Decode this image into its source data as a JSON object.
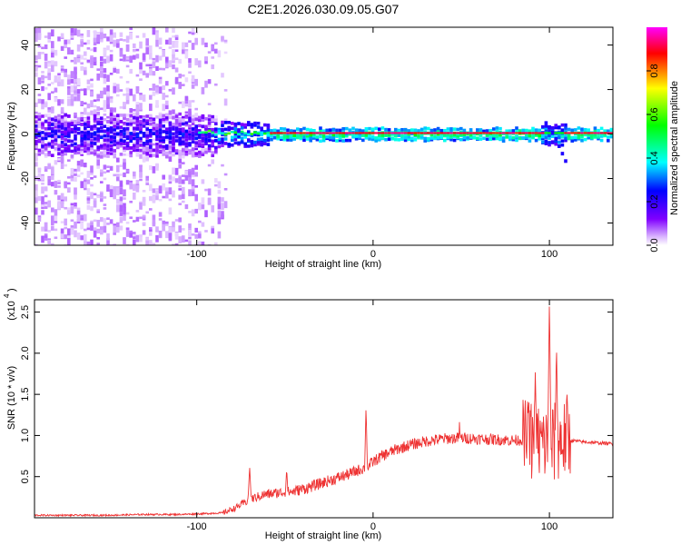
{
  "title": "C2E1.2026.030.09.05.G07",
  "chart_data": [
    {
      "type": "heatmap",
      "xlabel": "Height of straight line (km)",
      "ylabel": "Frequency (Hz)",
      "xlim": [
        -192,
        136
      ],
      "ylim": [
        -50,
        48
      ],
      "xticks": [
        -100,
        0,
        100
      ],
      "yticks": [
        -40,
        -20,
        0,
        20,
        40
      ],
      "colorbar": {
        "label": "Normalized spectral amplitude",
        "range": [
          0,
          1
        ],
        "ticks": [
          0.0,
          0.2,
          0.4,
          0.6,
          0.8
        ],
        "colors": [
          "#ffffff",
          "#8000ff",
          "#0000ff",
          "#00ffff",
          "#00ff00",
          "#ffff00",
          "#ff0000",
          "#ff00ff"
        ]
      },
      "features": [
        {
          "name": "broadband noise region",
          "x_range": [
            -192,
            -84
          ],
          "freq_range": [
            -50,
            48
          ]
        },
        {
          "name": "main carrier line",
          "x_range": [
            -60,
            136
          ],
          "freq": 0.5
        },
        {
          "name": "frequency excursion",
          "x_range": [
            96,
            108
          ],
          "freq_range": [
            -14,
            8
          ]
        }
      ]
    },
    {
      "type": "line",
      "xlabel": "Height of straight line (km)",
      "ylabel": "SNR (10 * v/v)",
      "y_scale_label": "(x10",
      "y_scale_exp": "4",
      "xlim": [
        -192,
        136
      ],
      "ylim": [
        0,
        2.65
      ],
      "xticks": [
        -100,
        0,
        100
      ],
      "yticks": [
        0.5,
        1.0,
        1.5,
        2.0,
        2.5
      ],
      "series": [
        {
          "name": "SNR",
          "color": "#ee3333",
          "x": [
            -192,
            -170,
            -150,
            -130,
            -110,
            -95,
            -85,
            -78,
            -70,
            -62,
            -55,
            -45,
            -35,
            -25,
            -15,
            -8,
            -3,
            0,
            5,
            12,
            20,
            30,
            40,
            50,
            60,
            70,
            80,
            86,
            92,
            96,
            100,
            104,
            108,
            112,
            120,
            128,
            136
          ],
          "values": [
            0.03,
            0.03,
            0.03,
            0.04,
            0.04,
            0.05,
            0.06,
            0.12,
            0.22,
            0.28,
            0.3,
            0.32,
            0.38,
            0.45,
            0.52,
            0.58,
            0.62,
            0.68,
            0.75,
            0.82,
            0.88,
            0.93,
            0.96,
            0.97,
            0.96,
            0.95,
            0.94,
            0.95,
            0.92,
            0.9,
            0.88,
            0.92,
            0.95,
            0.94,
            0.92,
            0.91,
            0.9
          ],
          "spikes": [
            {
              "x": -70,
              "y": 0.62
            },
            {
              "x": -49,
              "y": 0.6
            },
            {
              "x": -4,
              "y": 1.36
            },
            {
              "x": 49,
              "y": 1.18
            },
            {
              "x": 88,
              "y": 1.42
            },
            {
              "x": 92,
              "y": 1.8
            },
            {
              "x": 100,
              "y": 2.65
            },
            {
              "x": 104,
              "y": 2.12
            },
            {
              "x": 110,
              "y": 1.5
            }
          ]
        }
      ]
    }
  ]
}
